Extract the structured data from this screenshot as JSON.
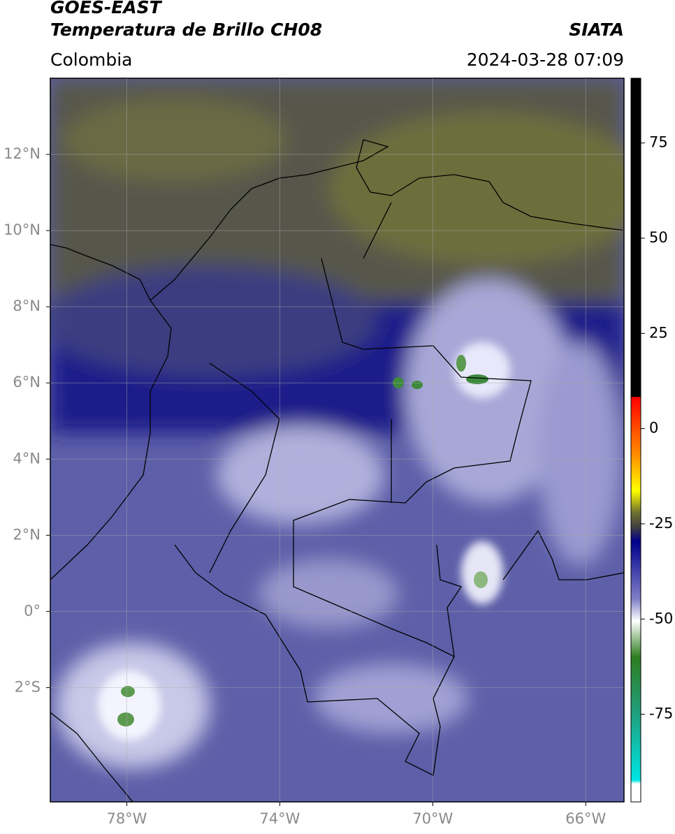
{
  "header": {
    "source": "GOES-EAST",
    "product": "Temperatura de Brillo CH08",
    "region": "Colombia",
    "agency": "SIATA",
    "datetime": "2024-03-28 07:09"
  },
  "map": {
    "lonlim": [
      -80,
      -65
    ],
    "latlim": [
      -5,
      14
    ],
    "grid": true,
    "xticks": [
      {
        "value": -78,
        "label": "78°W"
      },
      {
        "value": -74,
        "label": "74°W"
      },
      {
        "value": -70,
        "label": "70°W"
      },
      {
        "value": -66,
        "label": "66°W"
      }
    ],
    "yticks": [
      {
        "value": 12,
        "label": "12°N"
      },
      {
        "value": 10,
        "label": "10°N"
      },
      {
        "value": 8,
        "label": "8°N"
      },
      {
        "value": 6,
        "label": "6°N"
      },
      {
        "value": 4,
        "label": "4°N"
      },
      {
        "value": 2,
        "label": "2°N"
      },
      {
        "value": 0,
        "label": "0°"
      },
      {
        "value": -2,
        "label": "2°S"
      }
    ]
  },
  "colorbar": {
    "lim": [
      -98,
      92
    ],
    "ticks": [
      75,
      50,
      25,
      0,
      -25,
      -50,
      -75
    ]
  }
}
